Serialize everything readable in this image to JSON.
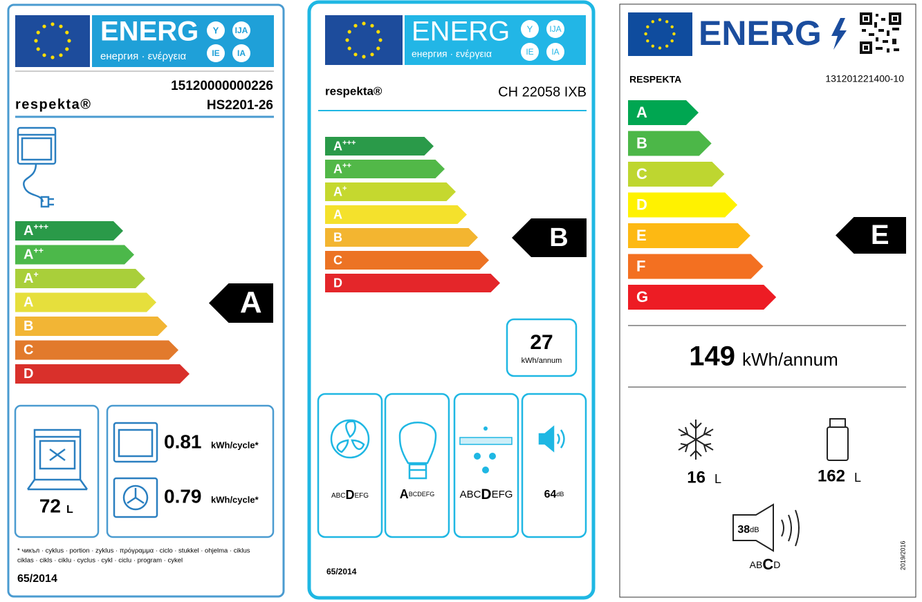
{
  "labels": [
    {
      "header": {
        "word": "ENERG",
        "languages": "енергия · ενέργεια",
        "codes": [
          "Y",
          "IJA",
          "IE",
          "IA"
        ]
      },
      "ean": "15120000000226",
      "brand": "respekta®",
      "model": "HS2201-26",
      "classes": [
        {
          "letter": "A",
          "sup": "+++",
          "color": "#2a9a49"
        },
        {
          "letter": "A",
          "sup": "++",
          "color": "#4cb84a"
        },
        {
          "letter": "A",
          "sup": "+",
          "color": "#a9cf3a"
        },
        {
          "letter": "A",
          "color": "#e6df3c"
        },
        {
          "letter": "B",
          "color": "#f2b535"
        },
        {
          "letter": "C",
          "color": "#e27a2c"
        },
        {
          "letter": "D",
          "color": "#d9302b"
        }
      ],
      "rating": "A",
      "volume": {
        "value": 72,
        "unit": "L"
      },
      "consumption": [
        {
          "value": 0.81,
          "unit": "kWh/cycle*"
        },
        {
          "value": 0.79,
          "unit": "kWh/cycle*"
        }
      ],
      "footnote": [
        "* чикъл · cyklus · portion · zyklus · πρόγραμμα · ciclo · stukkel · ohjelma · ciklus",
        "ciklas · cikls · ciklu · cyclus · cykl · ciclu · program · cykel"
      ],
      "regulation": "65/2014"
    },
    {
      "header": {
        "word": "ENERG",
        "languages": "енергия · ενέργεια",
        "codes": [
          "Y",
          "IJA",
          "IE",
          "IA"
        ]
      },
      "brand": "respekta®",
      "model": "CH 22058 IXB",
      "classes": [
        {
          "letter": "A",
          "sup": "+++",
          "color": "#2a9a49"
        },
        {
          "letter": "A",
          "sup": "++",
          "color": "#52b848"
        },
        {
          "letter": "A",
          "sup": "+",
          "color": "#c5d82f"
        },
        {
          "letter": "A",
          "color": "#f4e12c"
        },
        {
          "letter": "B",
          "color": "#f3b530"
        },
        {
          "letter": "C",
          "color": "#ec7324"
        },
        {
          "letter": "D",
          "color": "#e4262a"
        }
      ],
      "rating": "B",
      "annual": {
        "value": 27,
        "unit": "kWh/annum"
      },
      "fan_class": {
        "before": "ABC",
        "mark": "D",
        "after": "EFG"
      },
      "light_class": {
        "mark": "A",
        "after": "BCDEFG"
      },
      "filter_class": {
        "before": "ABC",
        "mark": "D",
        "after": "EFG"
      },
      "noise": {
        "value": 64,
        "unit": "dB"
      },
      "regulation": "65/2014"
    },
    {
      "header": {
        "word": "ENERG"
      },
      "brand": "RESPEKTA",
      "model": "131201221400-10",
      "classes": [
        {
          "letter": "A",
          "color": "#00a651"
        },
        {
          "letter": "B",
          "color": "#4cb748"
        },
        {
          "letter": "C",
          "color": "#bed630"
        },
        {
          "letter": "D",
          "color": "#fff200"
        },
        {
          "letter": "E",
          "color": "#fdb913"
        },
        {
          "letter": "F",
          "color": "#f37021"
        },
        {
          "letter": "G",
          "color": "#ed1c24"
        }
      ],
      "rating": "E",
      "annual": {
        "value": 149,
        "unit": "kWh/annum"
      },
      "freezer": {
        "value": 16,
        "unit": "L"
      },
      "fridge": {
        "value": 162,
        "unit": "L"
      },
      "noise": {
        "value": 38,
        "unit": "dB",
        "class": {
          "before": "AB",
          "mark": "C",
          "after": "D"
        }
      },
      "regulation": "2019/2016"
    }
  ]
}
